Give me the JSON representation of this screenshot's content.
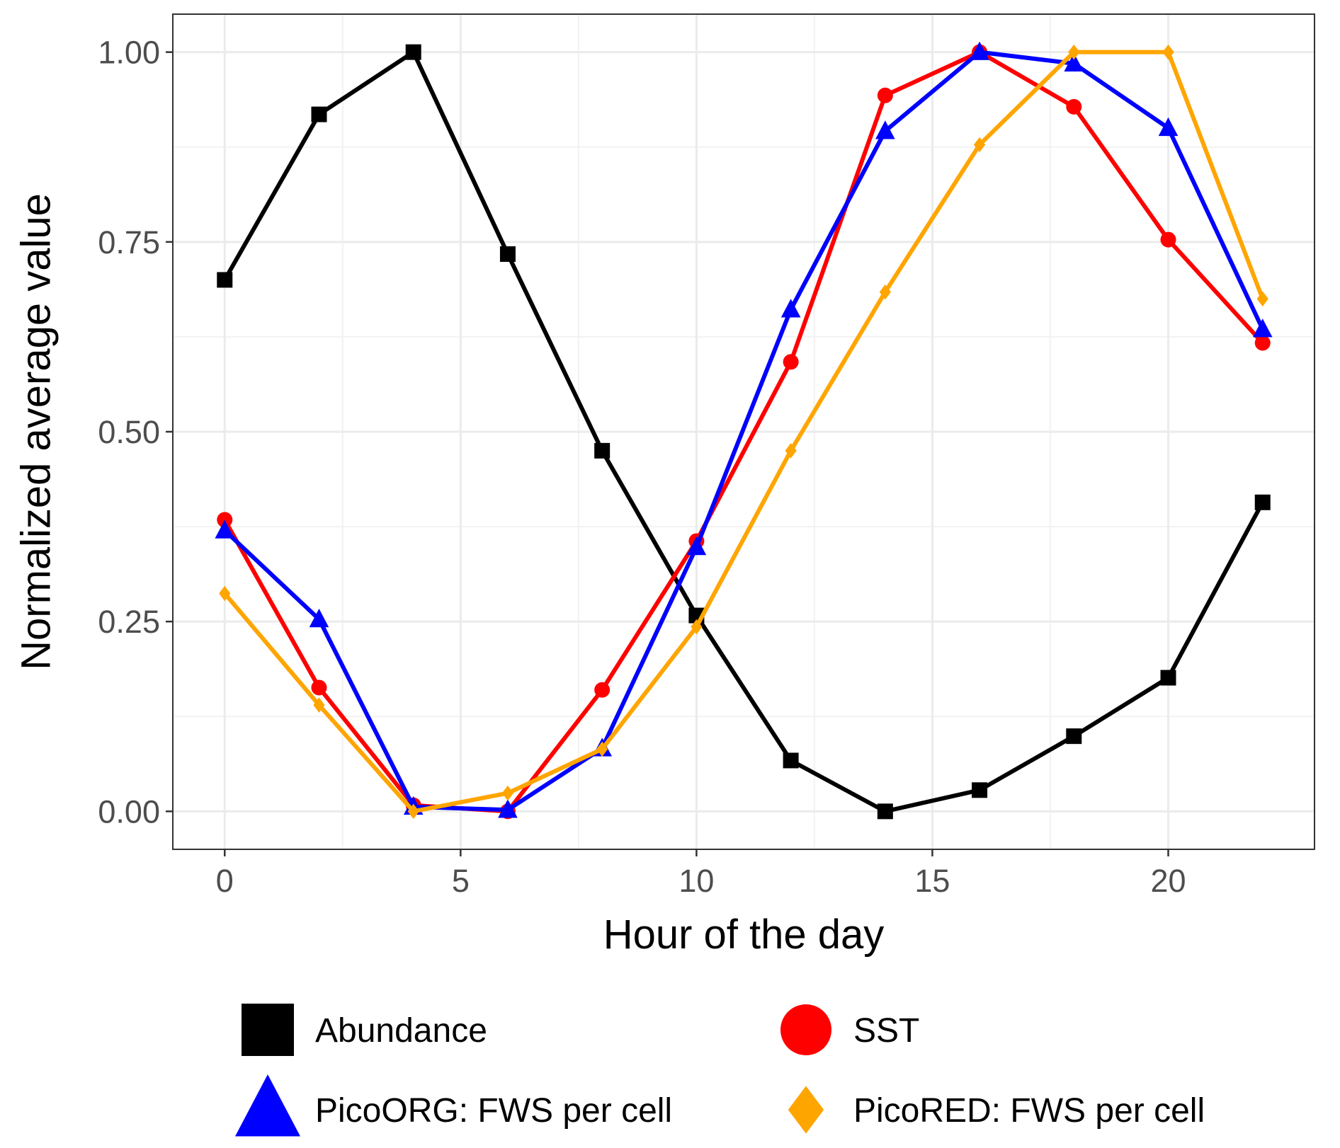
{
  "chart_data": {
    "type": "line",
    "title": "",
    "xlabel": "Hour of the day",
    "ylabel": "Normalized average value",
    "xlim": [
      -1.1,
      23.1
    ],
    "ylim": [
      -0.05,
      1.05
    ],
    "x_ticks": [
      0,
      5,
      10,
      15,
      20
    ],
    "x_tick_labels": [
      "0",
      "5",
      "10",
      "15",
      "20"
    ],
    "y_ticks": [
      0,
      0.25,
      0.5,
      0.75,
      1.0
    ],
    "y_tick_labels": [
      "0.00",
      "0.25",
      "0.50",
      "0.75",
      "1.00"
    ],
    "grid": true,
    "legend_position": "bottom",
    "x": [
      0,
      2,
      4,
      6,
      8,
      10,
      12,
      14,
      16,
      18,
      20,
      22
    ],
    "series": [
      {
        "name": "Abundance",
        "color": "#000000",
        "marker": "square",
        "values": [
          0.7,
          0.918,
          1.0,
          0.734,
          0.475,
          0.258,
          0.067,
          0.0,
          0.028,
          0.099,
          0.176,
          0.407
        ]
      },
      {
        "name": "SST",
        "color": "#ff0000",
        "marker": "circle",
        "values": [
          0.384,
          0.163,
          0.008,
          0.0,
          0.16,
          0.356,
          0.592,
          0.943,
          1.0,
          0.928,
          0.753,
          0.617
        ]
      },
      {
        "name": "PicoORG: FWS per cell",
        "color": "#0000ff",
        "marker": "triangle",
        "values": [
          0.37,
          0.253,
          0.006,
          0.002,
          0.083,
          0.348,
          0.661,
          0.896,
          1.0,
          0.985,
          0.9,
          0.635
        ]
      },
      {
        "name": "PicoRED: FWS per cell",
        "color": "#ffa500",
        "marker": "diamond",
        "values": [
          0.287,
          0.14,
          0.0,
          0.024,
          0.082,
          0.243,
          0.475,
          0.684,
          0.878,
          1.0,
          1.0,
          0.675
        ]
      }
    ]
  }
}
